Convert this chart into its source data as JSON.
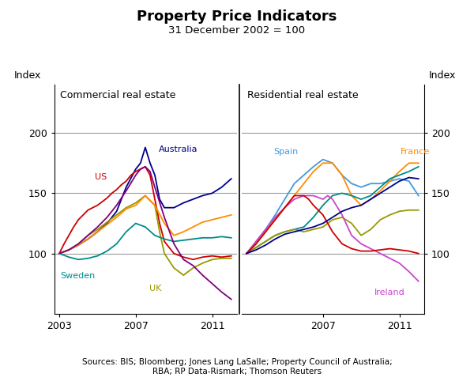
{
  "title": "Property Price Indicators",
  "subtitle": "31 December 2002 = 100",
  "ylabel_left": "Index",
  "ylabel_right": "Index",
  "left_panel_label": "Commercial real estate",
  "right_panel_label": "Residential real estate",
  "source_text": "Sources: BIS; Bloomberg; Jones Lang LaSalle; Property Council of Australia;\nRBA; RP Data-Rismark; Thomson Reuters",
  "ylim": [
    50,
    240
  ],
  "yticks": [
    100,
    150,
    200
  ],
  "commercial": {
    "Australia": {
      "color": "#00008B",
      "x": [
        2003.0,
        2003.5,
        2004.0,
        2004.5,
        2005.0,
        2005.5,
        2006.0,
        2006.5,
        2007.0,
        2007.25,
        2007.5,
        2007.75,
        2008.0,
        2008.25,
        2008.5,
        2009.0,
        2009.5,
        2010.0,
        2010.5,
        2011.0,
        2011.5,
        2012.0
      ],
      "y": [
        100,
        103,
        107,
        112,
        118,
        125,
        135,
        155,
        170,
        175,
        188,
        175,
        165,
        145,
        138,
        138,
        142,
        145,
        148,
        150,
        155,
        162
      ]
    },
    "US": {
      "color": "#CC0000",
      "x": [
        2003.0,
        2003.25,
        2003.5,
        2003.75,
        2004.0,
        2004.25,
        2004.5,
        2004.75,
        2005.0,
        2005.25,
        2005.5,
        2005.75,
        2006.0,
        2006.25,
        2006.5,
        2006.75,
        2007.0,
        2007.25,
        2007.5,
        2007.75,
        2008.0,
        2008.25,
        2008.5,
        2009.0,
        2009.5,
        2010.0,
        2010.5,
        2011.0,
        2011.5,
        2012.0
      ],
      "y": [
        100,
        108,
        115,
        122,
        128,
        132,
        136,
        138,
        140,
        143,
        146,
        150,
        153,
        157,
        160,
        165,
        168,
        170,
        172,
        165,
        145,
        125,
        110,
        100,
        97,
        95,
        97,
        98,
        97,
        98
      ]
    },
    "UK": {
      "color": "#999900",
      "x": [
        2003.0,
        2003.5,
        2004.0,
        2004.5,
        2005.0,
        2005.5,
        2006.0,
        2006.5,
        2007.0,
        2007.5,
        2008.0,
        2008.25,
        2008.5,
        2009.0,
        2009.5,
        2010.0,
        2010.5,
        2011.0,
        2011.5,
        2012.0
      ],
      "y": [
        100,
        103,
        108,
        115,
        120,
        126,
        132,
        138,
        142,
        148,
        140,
        118,
        100,
        88,
        82,
        88,
        92,
        95,
        96,
        96
      ]
    },
    "Sweden": {
      "color": "#008B8B",
      "x": [
        2003.0,
        2003.5,
        2004.0,
        2004.5,
        2005.0,
        2005.5,
        2006.0,
        2006.5,
        2007.0,
        2007.5,
        2008.0,
        2008.5,
        2009.0,
        2009.5,
        2010.0,
        2010.5,
        2011.0,
        2011.5,
        2012.0
      ],
      "y": [
        100,
        97,
        95,
        96,
        98,
        102,
        108,
        118,
        125,
        122,
        115,
        112,
        110,
        111,
        112,
        113,
        113,
        114,
        113
      ]
    },
    "NZ_orange": {
      "color": "#FF8C00",
      "x": [
        2003.0,
        2003.5,
        2004.0,
        2004.5,
        2005.0,
        2005.5,
        2006.0,
        2006.5,
        2007.0,
        2007.5,
        2008.0,
        2008.5,
        2009.0,
        2009.5,
        2010.0,
        2010.5,
        2011.0,
        2011.5,
        2012.0
      ],
      "y": [
        100,
        103,
        107,
        112,
        118,
        124,
        130,
        137,
        140,
        148,
        140,
        125,
        115,
        118,
        122,
        126,
        128,
        130,
        132
      ]
    },
    "Purple_comm": {
      "color": "#800080",
      "x": [
        2003.0,
        2003.5,
        2004.0,
        2004.5,
        2005.0,
        2005.5,
        2006.0,
        2006.5,
        2007.0,
        2007.25,
        2007.5,
        2007.75,
        2008.0,
        2008.5,
        2009.0,
        2009.5,
        2010.0,
        2010.5,
        2011.0,
        2011.5,
        2012.0
      ],
      "y": [
        100,
        103,
        108,
        115,
        122,
        130,
        140,
        152,
        165,
        170,
        172,
        168,
        155,
        130,
        108,
        95,
        90,
        82,
        75,
        68,
        62
      ]
    }
  },
  "residential": {
    "Spain": {
      "color": "#4499DD",
      "x": [
        2003.0,
        2003.5,
        2004.0,
        2004.5,
        2005.0,
        2005.5,
        2006.0,
        2006.5,
        2007.0,
        2007.5,
        2008.0,
        2008.5,
        2009.0,
        2009.5,
        2010.0,
        2010.5,
        2011.0,
        2011.5,
        2012.0
      ],
      "y": [
        100,
        110,
        120,
        132,
        145,
        158,
        165,
        172,
        178,
        175,
        165,
        158,
        155,
        158,
        158,
        160,
        162,
        160,
        148
      ]
    },
    "France": {
      "color": "#FF8C00",
      "x": [
        2003.0,
        2003.5,
        2004.0,
        2004.5,
        2005.0,
        2005.5,
        2006.0,
        2006.5,
        2007.0,
        2007.5,
        2008.0,
        2008.5,
        2009.0,
        2009.5,
        2010.0,
        2010.5,
        2011.0,
        2011.5,
        2012.0
      ],
      "y": [
        100,
        108,
        118,
        128,
        138,
        148,
        158,
        168,
        175,
        175,
        165,
        148,
        140,
        145,
        152,
        160,
        168,
        175,
        175
      ]
    },
    "Australia_res": {
      "color": "#008B8B",
      "x": [
        2003.0,
        2003.5,
        2004.0,
        2004.5,
        2005.0,
        2005.5,
        2006.0,
        2006.5,
        2007.0,
        2007.5,
        2008.0,
        2008.5,
        2009.0,
        2009.5,
        2010.0,
        2010.5,
        2011.0,
        2011.5,
        2012.0
      ],
      "y": [
        100,
        105,
        110,
        115,
        118,
        120,
        122,
        130,
        140,
        148,
        150,
        148,
        145,
        148,
        155,
        162,
        165,
        168,
        172
      ]
    },
    "UK_res": {
      "color": "#999900",
      "x": [
        2003.0,
        2003.5,
        2004.0,
        2004.5,
        2005.0,
        2005.5,
        2006.0,
        2006.5,
        2007.0,
        2007.5,
        2008.0,
        2008.5,
        2009.0,
        2009.5,
        2010.0,
        2010.5,
        2011.0,
        2011.5,
        2012.0
      ],
      "y": [
        100,
        105,
        110,
        115,
        118,
        120,
        118,
        120,
        122,
        128,
        130,
        125,
        115,
        120,
        128,
        132,
        135,
        136,
        136
      ]
    },
    "Ireland": {
      "color": "#CC44CC",
      "x": [
        2003.0,
        2003.5,
        2004.0,
        2004.5,
        2005.0,
        2005.5,
        2006.0,
        2006.5,
        2007.0,
        2007.25,
        2007.5,
        2008.0,
        2008.5,
        2009.0,
        2009.5,
        2010.0,
        2010.5,
        2011.0,
        2011.5,
        2012.0
      ],
      "y": [
        100,
        110,
        120,
        130,
        138,
        145,
        148,
        148,
        145,
        148,
        145,
        132,
        115,
        108,
        104,
        100,
        96,
        92,
        85,
        77
      ]
    },
    "US_res": {
      "color": "#CC0000",
      "x": [
        2003.0,
        2003.5,
        2004.0,
        2004.5,
        2005.0,
        2005.5,
        2006.0,
        2006.25,
        2006.5,
        2007.0,
        2007.5,
        2008.0,
        2008.5,
        2009.0,
        2009.5,
        2010.0,
        2010.5,
        2011.0,
        2011.5,
        2012.0
      ],
      "y": [
        100,
        108,
        118,
        128,
        138,
        148,
        148,
        145,
        140,
        132,
        118,
        108,
        104,
        102,
        102,
        103,
        104,
        103,
        102,
        100
      ]
    },
    "NZ_blue_dark": {
      "color": "#00008B",
      "x": [
        2003.0,
        2003.5,
        2004.0,
        2004.5,
        2005.0,
        2005.5,
        2006.0,
        2006.5,
        2007.0,
        2007.5,
        2008.0,
        2008.5,
        2009.0,
        2009.5,
        2010.0,
        2010.5,
        2011.0,
        2011.5,
        2012.0
      ],
      "y": [
        100,
        103,
        107,
        112,
        116,
        118,
        120,
        122,
        125,
        130,
        135,
        138,
        140,
        145,
        150,
        155,
        160,
        163,
        162
      ]
    }
  },
  "left_xlim": [
    2002.75,
    2012.3
  ],
  "right_xlim": [
    2002.75,
    2012.3
  ],
  "left_xticks": [
    2003,
    2007,
    2011
  ],
  "right_xticks": [
    2007,
    2011
  ],
  "hline_color": "#999999",
  "hline_lw": 0.8,
  "spine_color": "#000000",
  "grid_color": "#aaaaaa"
}
